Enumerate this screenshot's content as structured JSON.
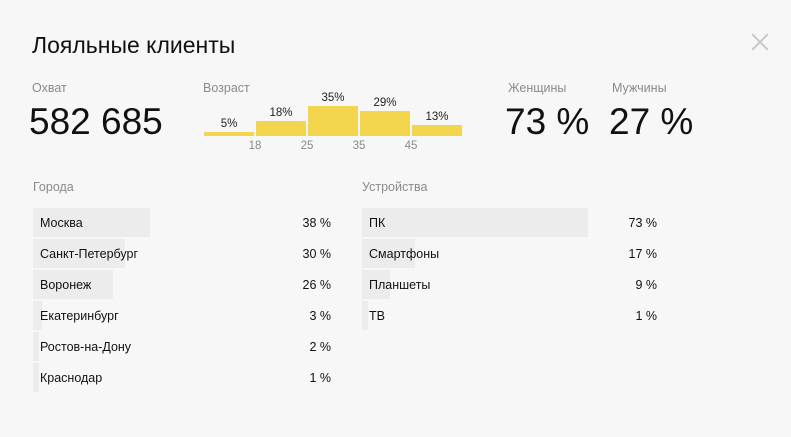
{
  "header": {
    "title": "Лояльные клиенты"
  },
  "reach": {
    "label": "Охват",
    "value": "582 685"
  },
  "age": {
    "label": "Возраст"
  },
  "gender": {
    "women_label": "Женщины",
    "women_value": "73 %",
    "men_label": "Мужчины",
    "men_value": "27 %"
  },
  "cities": {
    "label": "Города",
    "rows": [
      {
        "name": "Москва",
        "value": "38 %",
        "share": 38
      },
      {
        "name": "Санкт-Петербург",
        "value": "30 %",
        "share": 30
      },
      {
        "name": "Воронеж",
        "value": "26 %",
        "share": 26
      },
      {
        "name": "Екатеринбург",
        "value": "3 %",
        "share": 3
      },
      {
        "name": "Ростов-на-Дону",
        "value": "2 %",
        "share": 2
      },
      {
        "name": "Краснодар",
        "value": "1 %",
        "share": 1
      }
    ]
  },
  "devices": {
    "label": "Устройства",
    "rows": [
      {
        "name": "ПК",
        "value": "73 %",
        "share": 73
      },
      {
        "name": "Смартфоны",
        "value": "17 %",
        "share": 17
      },
      {
        "name": "Планшеты",
        "value": "9 %",
        "share": 9
      },
      {
        "name": "ТВ",
        "value": "1 %",
        "share": 1
      }
    ]
  },
  "colors": {
    "accent": "#f4d54e",
    "row_bar": "#ececec"
  },
  "chart_data": {
    "type": "bar",
    "categories": [
      "<18",
      "18–25",
      "25–35",
      "35–45",
      ">45"
    ],
    "values": [
      5,
      18,
      35,
      29,
      13
    ],
    "value_labels": [
      "5%",
      "18%",
      "35%",
      "29%",
      "13%"
    ],
    "x_ticks": [
      "18",
      "25",
      "35",
      "45"
    ],
    "title": "",
    "xlabel": "",
    "ylabel": "",
    "ylim": [
      0,
      35
    ],
    "grid": false
  }
}
